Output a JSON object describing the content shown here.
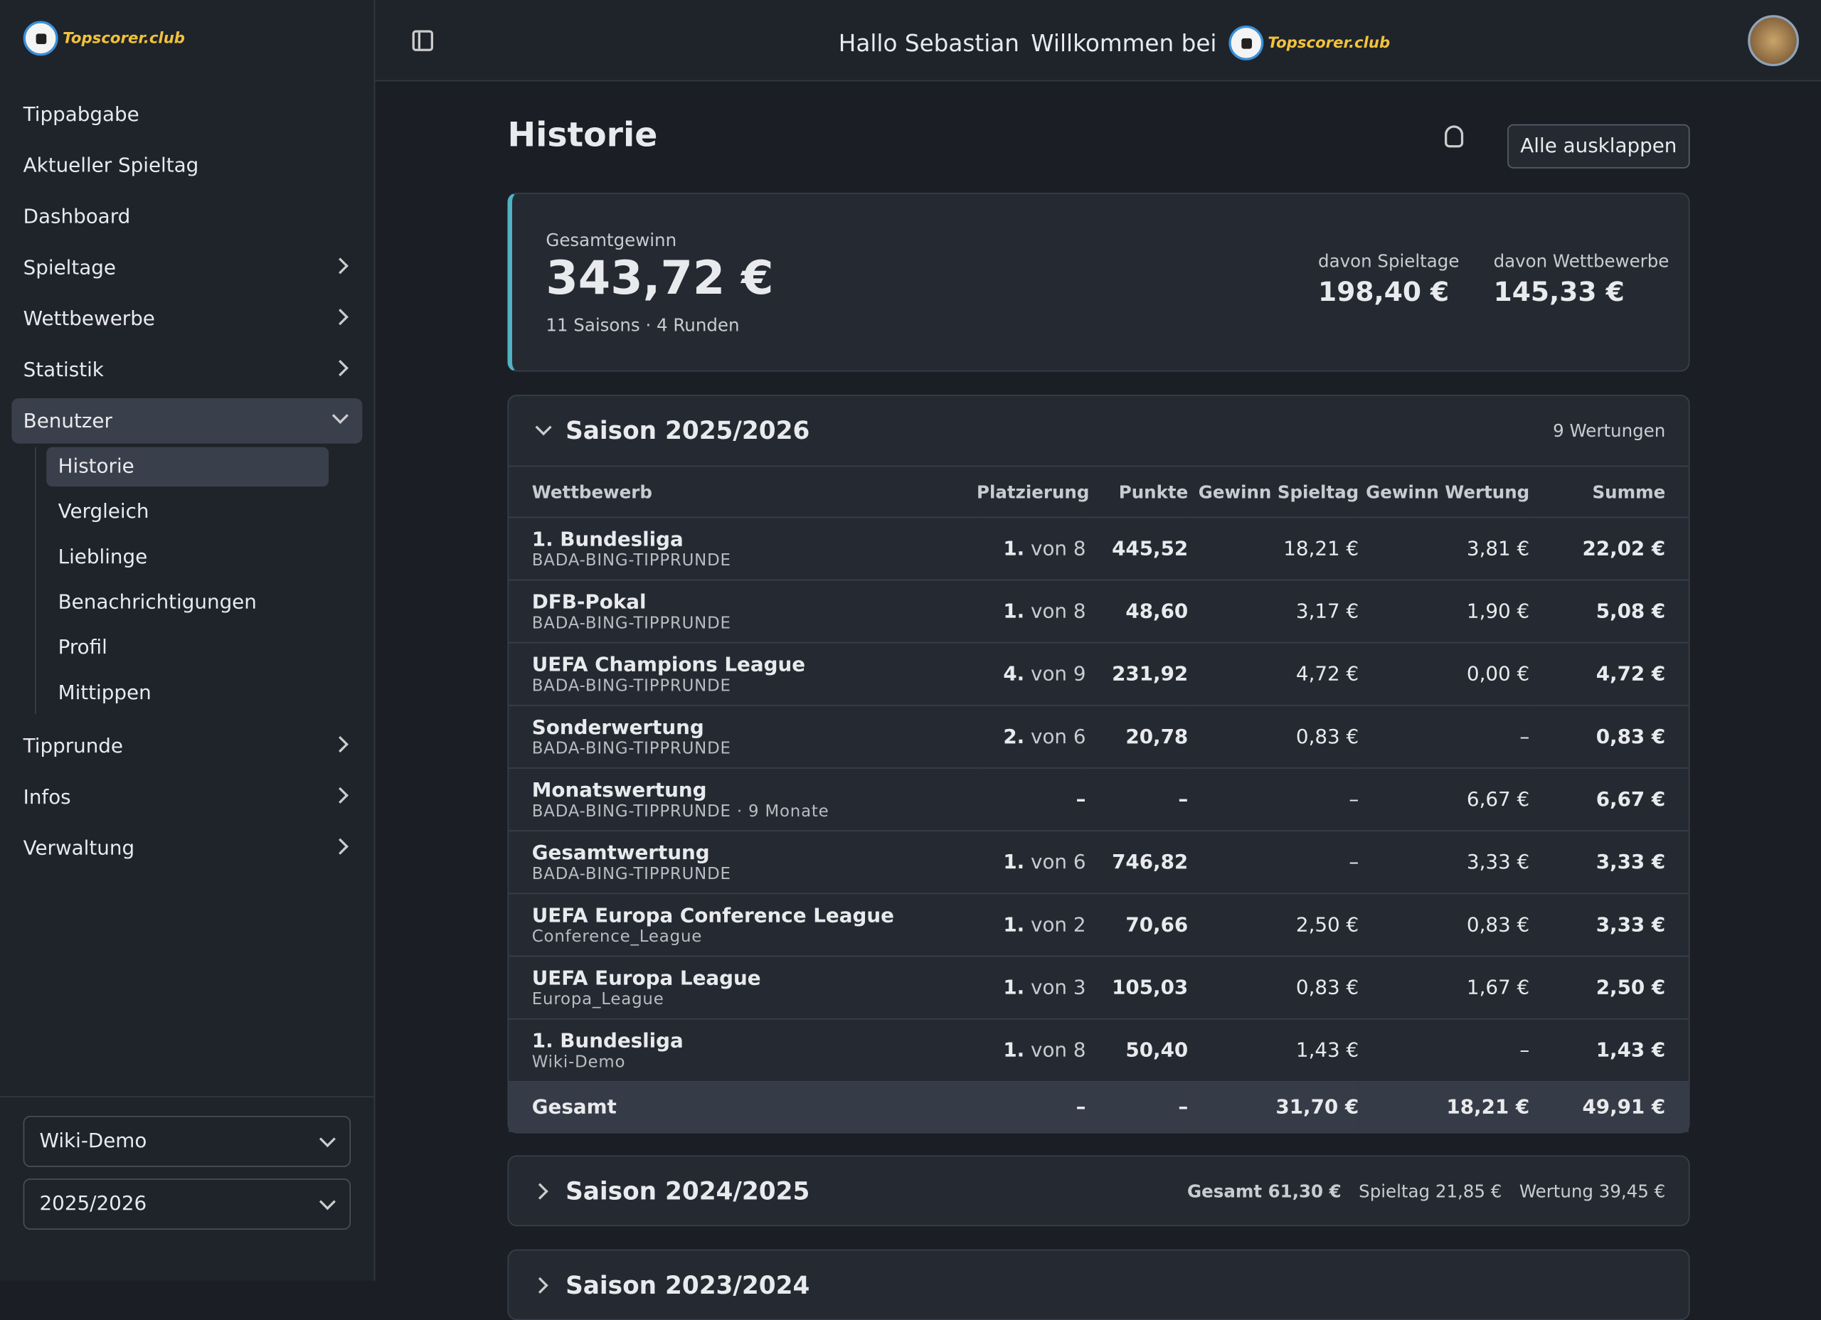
{
  "logo": "Topscorer.club",
  "nav": [
    {
      "label": "Tippabgabe"
    },
    {
      "label": "Aktueller Spieltag"
    },
    {
      "label": "Dashboard"
    },
    {
      "label": "Spieltage",
      "arrow": true
    },
    {
      "label": "Wettbewerbe",
      "arrow": true
    },
    {
      "label": "Statistik",
      "arrow": true
    },
    {
      "label": "Benutzer",
      "arrow": true,
      "open": true,
      "children": [
        "Historie",
        "Vergleich",
        "Lieblinge",
        "Benachrichtigungen",
        "Profil",
        "Mittippen"
      ]
    },
    {
      "label": "Tipprunde",
      "arrow": true
    },
    {
      "label": "Infos",
      "arrow": true
    },
    {
      "label": "Verwaltung",
      "arrow": true
    }
  ],
  "selects": [
    "Wiki-Demo",
    "2025/2026"
  ],
  "header": {
    "greeting": "Hallo Sebastian",
    "welcome": "Willkommen bei"
  },
  "page": {
    "title": "Historie",
    "expand_all": "Alle ausklappen"
  },
  "summary": {
    "label": "Gesamtgewinn",
    "total": "343,72 €",
    "meta": "11 Saisons · 4 Runden",
    "parts": [
      {
        "label": "davon Spieltage",
        "value": "198,40 €"
      },
      {
        "label": "davon Wettbewerbe",
        "value": "145,33 €"
      }
    ]
  },
  "seasons": [
    {
      "title": "Saison 2025/2026",
      "count": "9 Wertungen",
      "columns": [
        "Wettbewerb",
        "Platzierung",
        "Punkte",
        "Gewinn Spieltag",
        "Gewinn Wertung",
        "Summe"
      ],
      "rows": [
        [
          "1. Bundesliga",
          "BADA-BING-TIPPRUNDE",
          "1.",
          "von 8",
          "445,52",
          "18,21 €",
          "3,81 €",
          "22,02 €"
        ],
        [
          "DFB-Pokal",
          "BADA-BING-TIPPRUNDE",
          "1.",
          "von 8",
          "48,60",
          "3,17 €",
          "1,90 €",
          "5,08 €"
        ],
        [
          "UEFA Champions League",
          "BADA-BING-TIPPRUNDE",
          "4.",
          "von 9",
          "231,92",
          "4,72 €",
          "0,00 €",
          "4,72 €"
        ],
        [
          "Sonderwertung",
          "BADA-BING-TIPPRUNDE",
          "2.",
          "von 6",
          "20,78",
          "0,83 €",
          "–",
          "0,83 €"
        ],
        [
          "Monatswertung",
          "BADA-BING-TIPPRUNDE · 9 Monate",
          "–",
          "",
          "–",
          "–",
          "6,67 €",
          "6,67 €"
        ],
        [
          "Gesamtwertung",
          "BADA-BING-TIPPRUNDE",
          "1.",
          "von 6",
          "746,82",
          "–",
          "3,33 €",
          "3,33 €"
        ],
        [
          "UEFA Europa Conference League",
          "Conference_League",
          "1.",
          "von 2",
          "70,66",
          "2,50 €",
          "0,83 €",
          "3,33 €"
        ],
        [
          "UEFA Europa League",
          "Europa_League",
          "1.",
          "von 3",
          "105,03",
          "0,83 €",
          "1,67 €",
          "2,50 €"
        ],
        [
          "1. Bundesliga",
          "Wiki-Demo",
          "1.",
          "von 8",
          "50,40",
          "1,43 €",
          "–",
          "1,43 €"
        ]
      ],
      "total": [
        "Gesamt",
        "–",
        "–",
        "31,70 €",
        "18,21 €",
        "49,91 €"
      ]
    },
    {
      "title": "Saison 2024/2025",
      "totals": [
        "Gesamt 61,30 €",
        "Spieltag 21,85 €",
        "Wertung 39,45 €"
      ]
    },
    {
      "title": "Saison 2023/2024"
    }
  ]
}
